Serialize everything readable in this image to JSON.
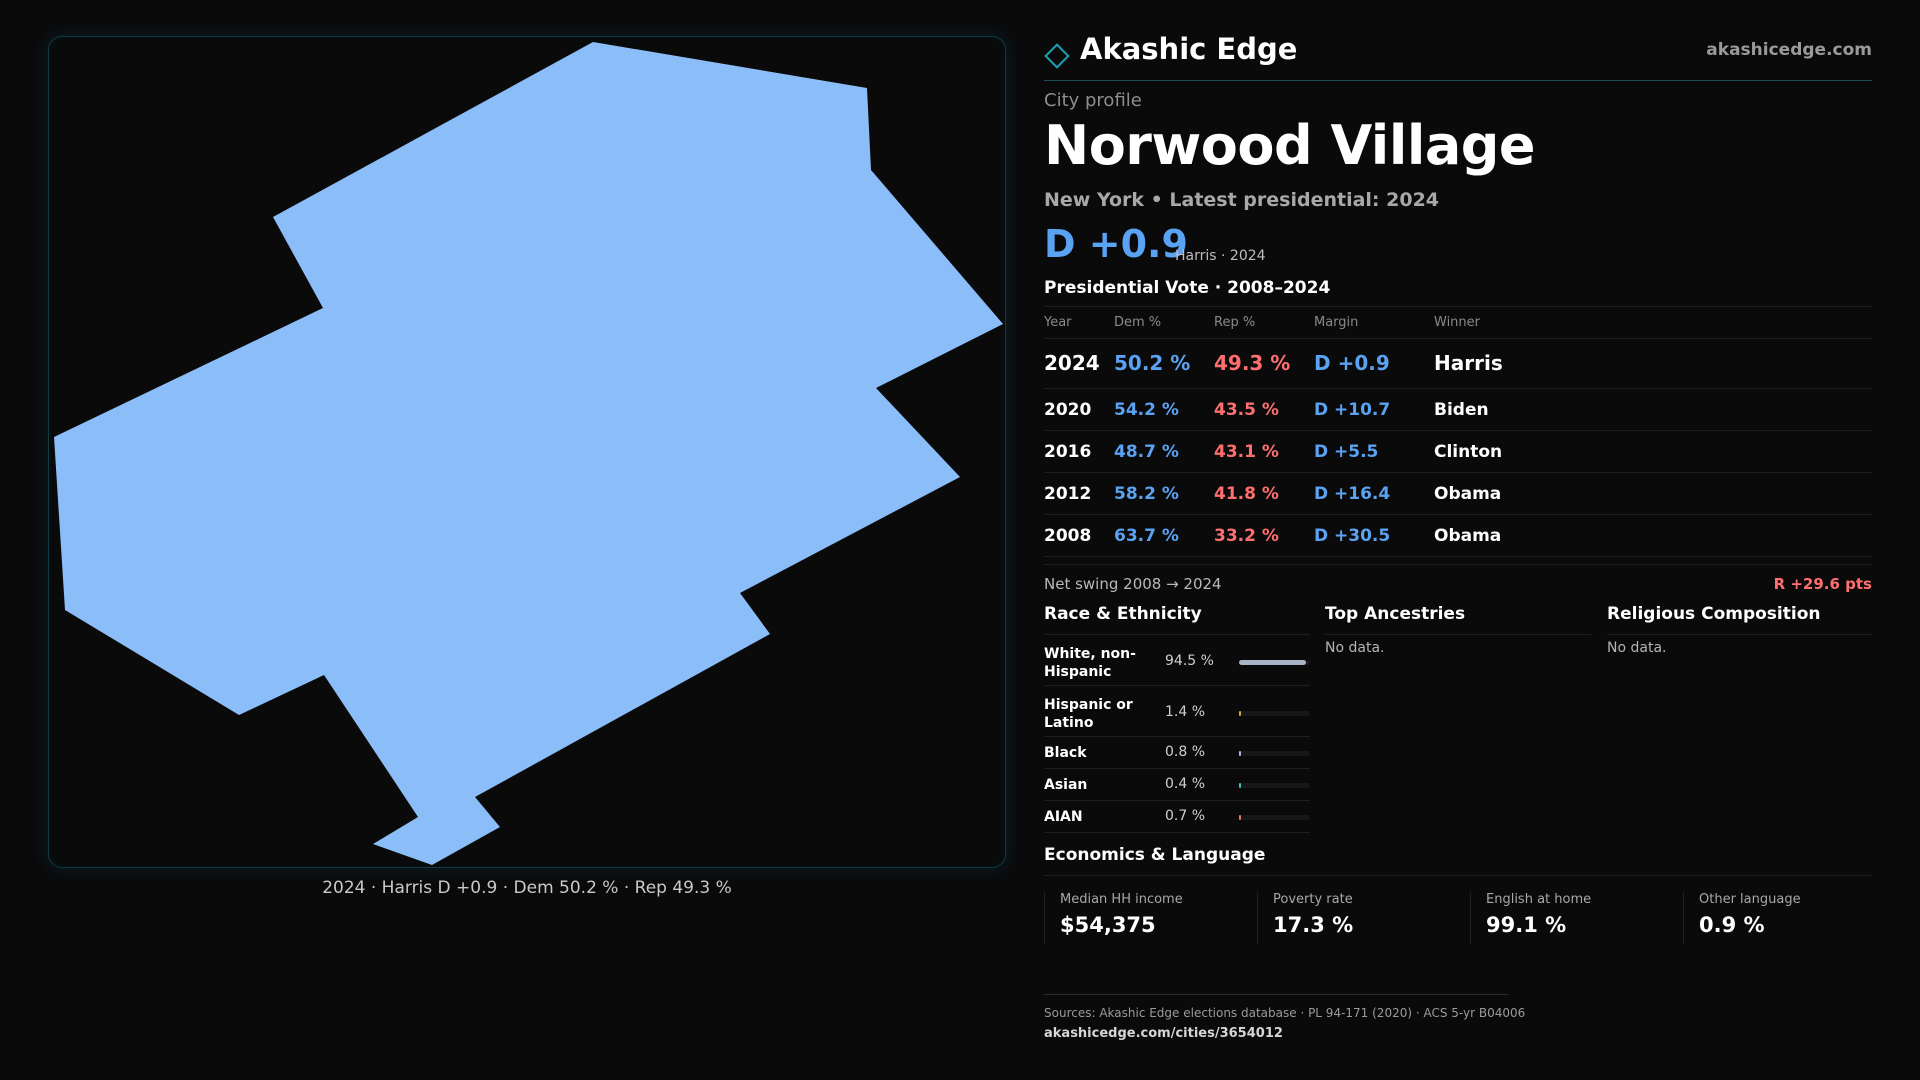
{
  "map": {
    "fill_color": "#8bbef8",
    "caption": "2024 · Harris D +0.9 · Dem 50.2 % · Rep 49.3 %"
  },
  "header": {
    "brand": "Akashic Edge",
    "site": "akashicedge.com"
  },
  "profile": {
    "eyebrow": "City profile",
    "city": "Norwood Village",
    "meta": "New York  • Latest presidential: 2024",
    "margin": "D +0.9",
    "margin_sub": "Harris · 2024"
  },
  "vote": {
    "title": "Presidential Vote · 2008–2024",
    "headers": {
      "year": "Year",
      "dem": "Dem %",
      "rep": "Rep %",
      "margin": "Margin",
      "winner": "Winner"
    },
    "rows": [
      {
        "year": "2024",
        "dem": "50.2 %",
        "rep": "49.3 %",
        "margin": "D +0.9",
        "winner": "Harris"
      },
      {
        "year": "2020",
        "dem": "54.2 %",
        "rep": "43.5 %",
        "margin": "D +10.7",
        "winner": "Biden"
      },
      {
        "year": "2016",
        "dem": "48.7 %",
        "rep": "43.1 %",
        "margin": "D +5.5",
        "winner": "Clinton"
      },
      {
        "year": "2012",
        "dem": "58.2 %",
        "rep": "41.8 %",
        "margin": "D +16.4",
        "winner": "Obama"
      },
      {
        "year": "2008",
        "dem": "63.7 %",
        "rep": "33.2 %",
        "margin": "D +30.5",
        "winner": "Obama"
      }
    ],
    "swing_label": "Net swing 2008 → 2024",
    "swing_value": "R +29.6 pts"
  },
  "race": {
    "title": "Race & Ethnicity",
    "rows": [
      {
        "label": "White, non-Hispanic",
        "pct": "94.5 %",
        "fraction": 0.945,
        "color": "#a9b3c6"
      },
      {
        "label": "Hispanic or Latino",
        "pct": "1.4 %",
        "fraction": 0.014,
        "color": "#e8a13a"
      },
      {
        "label": "Black",
        "pct": "0.8 %",
        "fraction": 0.008,
        "color": "#c9a8f0"
      },
      {
        "label": "Asian",
        "pct": "0.4 %",
        "fraction": 0.004,
        "color": "#3fc7b8"
      },
      {
        "label": "AIAN",
        "pct": "0.7 %",
        "fraction": 0.007,
        "color": "#e87b5a"
      }
    ]
  },
  "ancestries": {
    "title": "Top Ancestries",
    "empty": "No data."
  },
  "religion": {
    "title": "Religious Composition",
    "empty": "No data."
  },
  "economics": {
    "title": "Economics & Language",
    "cells": [
      {
        "label": "Median HH income",
        "value": "$54,375"
      },
      {
        "label": "Poverty rate",
        "value": "17.3 %"
      },
      {
        "label": "English at home",
        "value": "99.1 %"
      },
      {
        "label": "Other language",
        "value": "0.9 %"
      }
    ]
  },
  "footer": {
    "sources": "Sources: Akashic Edge elections database · PL 94-171 (2020) · ACS 5-yr B04006",
    "url": "akashicedge.com/cities/3654012"
  }
}
